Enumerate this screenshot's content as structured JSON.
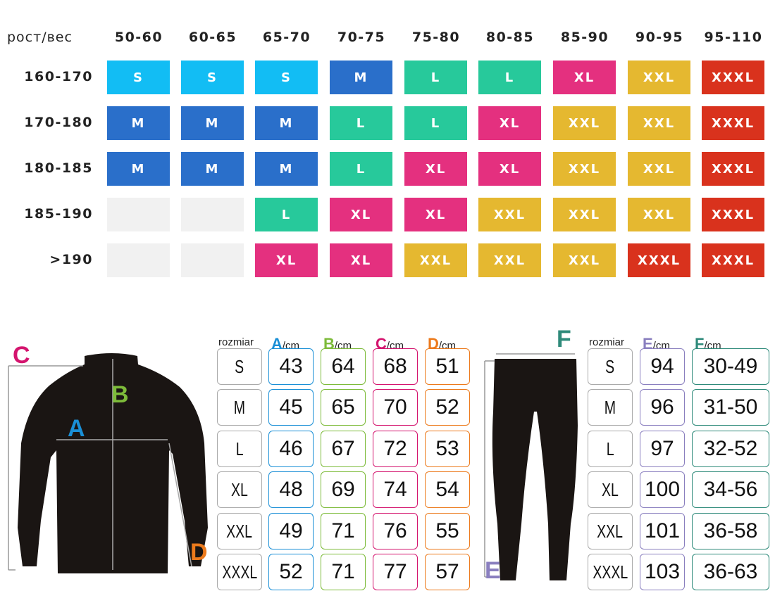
{
  "size_grid": {
    "corner_label": "рост/вес",
    "weights": [
      "50-60",
      "60-65",
      "65-70",
      "70-75",
      "75-80",
      "80-85",
      "85-90",
      "90-95",
      "95-110"
    ],
    "heights": [
      "160-170",
      "170-180",
      "180-185",
      "185-190",
      ">190"
    ],
    "rows": [
      [
        "S",
        "S",
        "S",
        "M",
        "L",
        "L",
        "XL",
        "XXL",
        "XXXL"
      ],
      [
        "M",
        "M",
        "M",
        "L",
        "L",
        "XL",
        "XXL",
        "XXL",
        "XXXL"
      ],
      [
        "M",
        "M",
        "M",
        "L",
        "XL",
        "XL",
        "XXL",
        "XXL",
        "XXXL"
      ],
      [
        "",
        "",
        "L",
        "XL",
        "XL",
        "XXL",
        "XXL",
        "XXL",
        "XXXL"
      ],
      [
        "",
        "",
        "XL",
        "XL",
        "XXL",
        "XXL",
        "XXL",
        "XXXL",
        "XXXL"
      ]
    ],
    "colors": {
      "S": "#12bdf4",
      "M": "#2a6fca",
      "L": "#27c99b",
      "XL": "#e4307f",
      "XXL": "#e5b830",
      "XXXL": "#d9321d",
      "": "#f1f1f1"
    }
  },
  "shirt_table": {
    "size_header": "rozmiar",
    "columns": [
      {
        "letter": "A",
        "unit": "/cm",
        "color": "#1a8fd6",
        "values": [
          "43",
          "45",
          "46",
          "48",
          "49",
          "52"
        ]
      },
      {
        "letter": "B",
        "unit": "/cm",
        "color": "#7dbb3a",
        "values": [
          "64",
          "65",
          "67",
          "69",
          "71",
          "71"
        ]
      },
      {
        "letter": "C",
        "unit": "/cm",
        "color": "#d4146e",
        "values": [
          "68",
          "70",
          "72",
          "74",
          "76",
          "77"
        ]
      },
      {
        "letter": "D",
        "unit": "/cm",
        "color": "#ec7a1c",
        "values": [
          "51",
          "52",
          "53",
          "54",
          "55",
          "57"
        ]
      }
    ],
    "sizes": [
      "S",
      "M",
      "L",
      "XL",
      "XXL",
      "XXXL"
    ]
  },
  "pants_table": {
    "size_header": "rozmiar",
    "columns": [
      {
        "letter": "E",
        "unit": "/cm",
        "color": "#8a7fbf",
        "values": [
          "94",
          "96",
          "97",
          "100",
          "101",
          "103"
        ]
      },
      {
        "letter": "F",
        "unit": "/cm",
        "color": "#2e8a7a",
        "values": [
          "30-49",
          "31-50",
          "32-52",
          "34-56",
          "36-58",
          "36-63"
        ]
      }
    ],
    "sizes": [
      "S",
      "M",
      "L",
      "XL",
      "XXL",
      "XXXL"
    ]
  },
  "diagram_labels": {
    "A": "A",
    "B": "B",
    "C": "C",
    "D": "D",
    "E": "E",
    "F": "F"
  }
}
